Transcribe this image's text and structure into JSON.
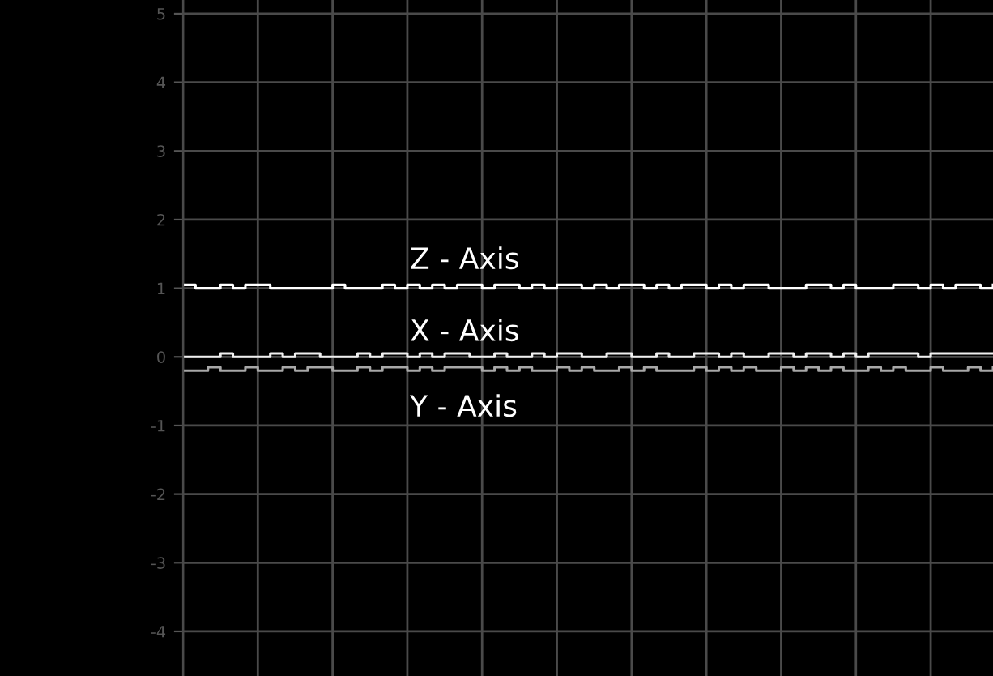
{
  "chart_data": {
    "type": "step",
    "categories": [
      null,
      null,
      null,
      null,
      null,
      null,
      null,
      null,
      null,
      null,
      null,
      null,
      null,
      null,
      null,
      null,
      null,
      null,
      null,
      null,
      null,
      null,
      null,
      null,
      null,
      null,
      null,
      null,
      null,
      null,
      null,
      null,
      null,
      null,
      null,
      null,
      null,
      null,
      null,
      null,
      null,
      null,
      null,
      null,
      null,
      null,
      null,
      null,
      null,
      null,
      null,
      null,
      null,
      null,
      null,
      null,
      null,
      null,
      null,
      null,
      null,
      null,
      null,
      null,
      null,
      null
    ],
    "ylim": [
      -4.65,
      5.2
    ],
    "yticks": [
      -4,
      -3,
      -2,
      -1,
      0,
      1,
      2,
      3,
      4,
      5
    ],
    "grid": true,
    "legend": false,
    "tick_labels": "y",
    "line_style": "solid",
    "marker": "none",
    "series": [
      {
        "name": "Z - Axis",
        "color": "#ffffff",
        "values": [
          1.05,
          1,
          1,
          1.05,
          1,
          1.05,
          1.05,
          1,
          1,
          1,
          1,
          1,
          1.05,
          1,
          1,
          1,
          1.05,
          1,
          1.05,
          1,
          1.05,
          1,
          1.05,
          1.05,
          1,
          1.05,
          1.05,
          1,
          1.05,
          1,
          1.05,
          1.05,
          1,
          1.05,
          1,
          1.05,
          1.05,
          1,
          1.05,
          1,
          1.05,
          1.05,
          1,
          1.05,
          1,
          1.05,
          1.05,
          1,
          1,
          1,
          1.05,
          1.05,
          1,
          1.05,
          1,
          1,
          1,
          1.05,
          1.05,
          1,
          1.05,
          1,
          1.05,
          1.05,
          1,
          1.05
        ]
      },
      {
        "name": "X - Axis",
        "color": "#f0f0f0",
        "values": [
          0,
          0,
          0,
          0.05,
          0,
          0,
          0,
          0.05,
          0,
          0.05,
          0.05,
          0,
          0,
          0,
          0.05,
          0,
          0.05,
          0.05,
          0,
          0.05,
          0,
          0.05,
          0.05,
          0,
          0,
          0.05,
          0,
          0,
          0.05,
          0,
          0.05,
          0.05,
          0,
          0,
          0.05,
          0.05,
          0,
          0,
          0.05,
          0,
          0,
          0.05,
          0.05,
          0,
          0.05,
          0,
          0,
          0.05,
          0.05,
          0,
          0.05,
          0.05,
          0,
          0.05,
          0,
          0.05,
          0.05,
          0.05,
          0.05,
          0,
          0.05,
          0.05,
          0.05,
          0.05,
          0.05,
          0.05
        ]
      },
      {
        "name": "Y - Axis",
        "color": "#a8a8a8",
        "values": [
          -0.2,
          -0.2,
          -0.15,
          -0.2,
          -0.2,
          -0.15,
          -0.2,
          -0.2,
          -0.15,
          -0.2,
          -0.15,
          -0.15,
          -0.2,
          -0.2,
          -0.15,
          -0.2,
          -0.15,
          -0.15,
          -0.2,
          -0.15,
          -0.2,
          -0.15,
          -0.15,
          -0.15,
          -0.2,
          -0.15,
          -0.2,
          -0.15,
          -0.2,
          -0.2,
          -0.15,
          -0.2,
          -0.15,
          -0.2,
          -0.2,
          -0.15,
          -0.2,
          -0.15,
          -0.2,
          -0.2,
          -0.2,
          -0.15,
          -0.2,
          -0.15,
          -0.2,
          -0.15,
          -0.2,
          -0.2,
          -0.15,
          -0.2,
          -0.15,
          -0.2,
          -0.15,
          -0.2,
          -0.2,
          -0.15,
          -0.2,
          -0.15,
          -0.2,
          -0.2,
          -0.15,
          -0.2,
          -0.2,
          -0.15,
          -0.2,
          -0.15
        ]
      }
    ]
  }
}
